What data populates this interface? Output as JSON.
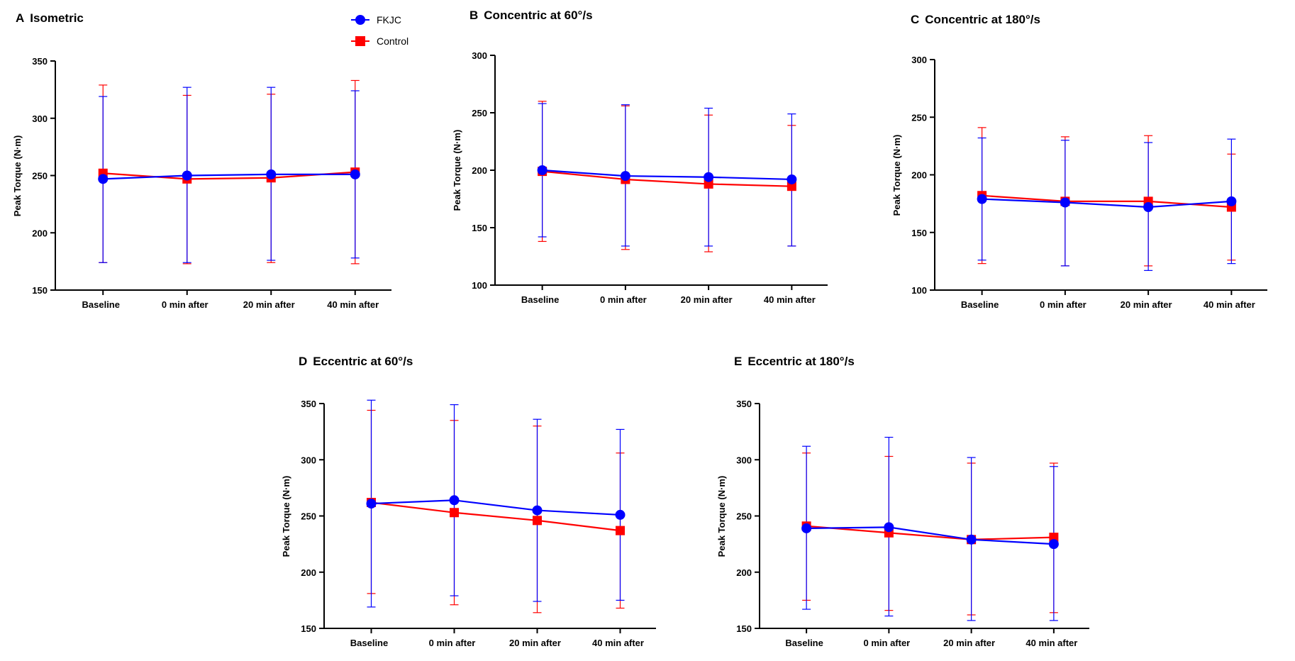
{
  "legend": {
    "series": [
      {
        "name": "FKJC",
        "color": "#0000ff",
        "marker": "circle"
      },
      {
        "name": "Control",
        "color": "#ff0000",
        "marker": "square"
      }
    ]
  },
  "chart_data": [
    {
      "type": "line",
      "panel": "A",
      "title": "Isometric",
      "ylabel": "Peak Torque (N·m)",
      "xlabel": "",
      "ylim": [
        150,
        350
      ],
      "yticks": [
        150,
        200,
        250,
        300,
        350
      ],
      "categories": [
        "Baseline",
        "0 min after",
        "20 min after",
        "40 min after"
      ],
      "series": [
        {
          "name": "FKJC",
          "values": [
            247,
            250,
            251,
            251
          ],
          "err_low": [
            174,
            174,
            176,
            178
          ],
          "err_high": [
            319,
            327,
            327,
            324
          ]
        },
        {
          "name": "Control",
          "values": [
            252,
            247,
            248,
            253
          ],
          "err_low": [
            174,
            173,
            174,
            173
          ],
          "err_high": [
            329,
            320,
            321,
            333
          ]
        }
      ]
    },
    {
      "type": "line",
      "panel": "B",
      "title": "Concentric at 60°/s",
      "ylabel": "Peak Torque (N·m)",
      "xlabel": "",
      "ylim": [
        100,
        300
      ],
      "yticks": [
        100,
        150,
        200,
        250,
        300
      ],
      "categories": [
        "Baseline",
        "0 min after",
        "20 min after",
        "40 min after"
      ],
      "series": [
        {
          "name": "FKJC",
          "values": [
            200,
            195,
            194,
            192
          ],
          "err_low": [
            142,
            134,
            134,
            134
          ],
          "err_high": [
            258,
            257,
            254,
            249
          ]
        },
        {
          "name": "Control",
          "values": [
            199,
            192,
            188,
            186
          ],
          "err_low": [
            138,
            131,
            129,
            134
          ],
          "err_high": [
            260,
            256,
            248,
            239
          ]
        }
      ]
    },
    {
      "type": "line",
      "panel": "C",
      "title": "Concentric at 180°/s",
      "ylabel": "Peak Torque (N·m)",
      "xlabel": "",
      "ylim": [
        100,
        300
      ],
      "yticks": [
        100,
        150,
        200,
        250,
        300
      ],
      "categories": [
        "Baseline",
        "0 min after",
        "20 min after",
        "40 min after"
      ],
      "series": [
        {
          "name": "FKJC",
          "values": [
            179,
            176,
            172,
            177
          ],
          "err_low": [
            126,
            121,
            117,
            123
          ],
          "err_high": [
            232,
            230,
            228,
            231
          ]
        },
        {
          "name": "Control",
          "values": [
            182,
            177,
            177,
            172
          ],
          "err_low": [
            123,
            121,
            121,
            126
          ],
          "err_high": [
            241,
            233,
            234,
            218
          ]
        }
      ]
    },
    {
      "type": "line",
      "panel": "D",
      "title": "Eccentric at 60°/s",
      "ylabel": "Peak Torque (N·m)",
      "xlabel": "",
      "ylim": [
        150,
        350
      ],
      "yticks": [
        150,
        200,
        250,
        300,
        350
      ],
      "categories": [
        "Baseline",
        "0 min after",
        "20 min after",
        "40 min after"
      ],
      "series": [
        {
          "name": "FKJC",
          "values": [
            261,
            264,
            255,
            251
          ],
          "err_low": [
            169,
            179,
            174,
            175
          ],
          "err_high": [
            353,
            349,
            336,
            327
          ]
        },
        {
          "name": "Control",
          "values": [
            262,
            253,
            246,
            237
          ],
          "err_low": [
            181,
            171,
            164,
            168
          ],
          "err_high": [
            344,
            335,
            330,
            306
          ]
        }
      ]
    },
    {
      "type": "line",
      "panel": "E",
      "title": "Eccentric at 180°/s",
      "ylabel": "Peak Torque (N·m)",
      "xlabel": "",
      "ylim": [
        150,
        350
      ],
      "yticks": [
        150,
        200,
        250,
        300,
        350
      ],
      "categories": [
        "Baseline",
        "0 min after",
        "20 min after",
        "40 min after"
      ],
      "series": [
        {
          "name": "FKJC",
          "values": [
            239,
            240,
            229,
            225
          ],
          "err_low": [
            167,
            161,
            157,
            157
          ],
          "err_high": [
            312,
            320,
            302,
            294
          ]
        },
        {
          "name": "Control",
          "values": [
            241,
            235,
            229,
            231
          ],
          "err_low": [
            175,
            166,
            162,
            164
          ],
          "err_high": [
            306,
            303,
            297,
            297
          ]
        }
      ]
    }
  ]
}
